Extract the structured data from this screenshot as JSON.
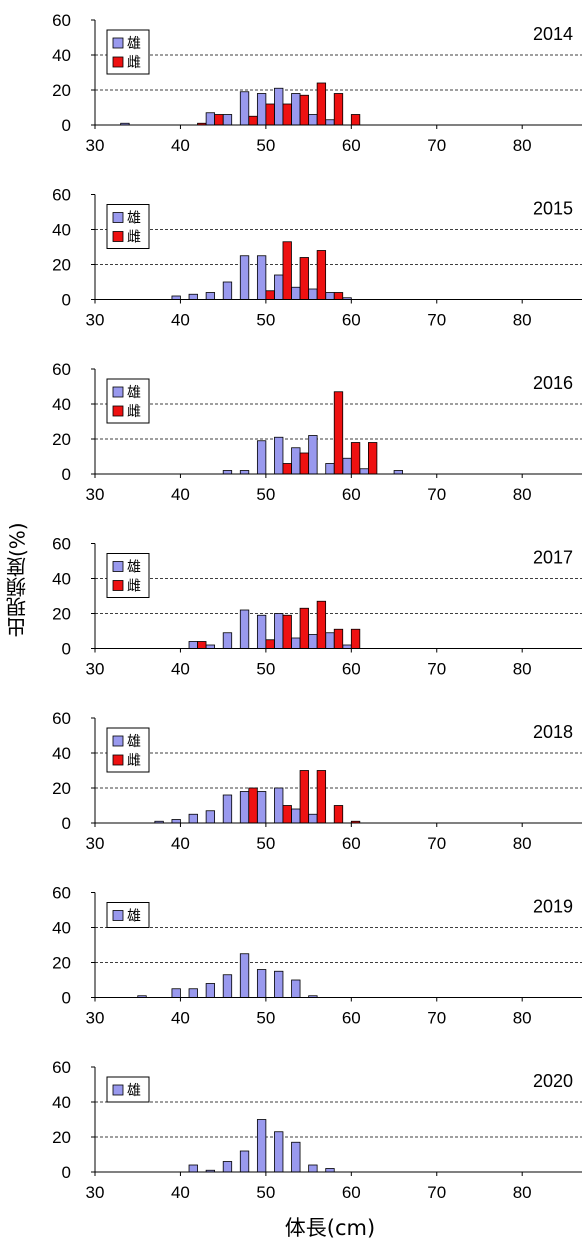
{
  "ylabel": "出現頻度(%)",
  "xlabel": "体長(cm)",
  "colors": {
    "male": "#9999ee",
    "female": "#ee1111",
    "stroke": "#000000"
  },
  "legend_labels": {
    "male": "雄",
    "female": "雌"
  },
  "chart_data": [
    {
      "type": "bar",
      "title": "2014",
      "xlim": [
        30,
        87
      ],
      "ylim": [
        0,
        60
      ],
      "xticks": [
        "30",
        "40",
        "50",
        "60",
        "70",
        "80"
      ],
      "yticks": [
        "0",
        "20",
        "40",
        "60"
      ],
      "grid": "dashed horizontal at 20 and 40",
      "legend": "top-left",
      "series": [
        {
          "name": "雄",
          "x": [
            34,
            44,
            46,
            48,
            50,
            52,
            54,
            56,
            58
          ],
          "values": [
            1,
            7,
            6,
            19,
            18,
            21,
            18,
            6,
            3
          ]
        },
        {
          "name": "雌",
          "x": [
            42,
            44,
            48,
            50,
            52,
            54,
            56,
            58
          ],
          "values": [
            1,
            6,
            5,
            12,
            12,
            17,
            24,
            18
          ]
        },
        {
          "name": "雌",
          "x": [
            60
          ],
          "values": [
            6
          ]
        }
      ]
    },
    {
      "type": "bar",
      "title": "2015",
      "xlim": [
        30,
        87
      ],
      "ylim": [
        0,
        60
      ],
      "xticks": [
        "30",
        "40",
        "50",
        "60",
        "70",
        "80"
      ],
      "yticks": [
        "0",
        "20",
        "40",
        "60"
      ],
      "grid": "dashed horizontal at 20 and 40",
      "legend": "top-left",
      "series": [
        {
          "name": "雄",
          "x": [
            40,
            42,
            44,
            46,
            48,
            50,
            52,
            54,
            56,
            58,
            60
          ],
          "values": [
            2,
            3,
            4,
            10,
            25,
            25,
            14,
            7,
            6,
            4,
            1
          ]
        },
        {
          "name": "雌",
          "x": [
            50,
            52,
            54,
            56,
            58
          ],
          "values": [
            5,
            33,
            24,
            28,
            4
          ]
        }
      ]
    },
    {
      "type": "bar",
      "title": "2016",
      "xlim": [
        30,
        87
      ],
      "ylim": [
        0,
        60
      ],
      "xticks": [
        "30",
        "40",
        "50",
        "60",
        "70",
        "80"
      ],
      "yticks": [
        "0",
        "20",
        "40",
        "60"
      ],
      "grid": "dashed horizontal at 20 and 40",
      "legend": "top-left",
      "series": [
        {
          "name": "雄",
          "x": [
            46,
            48,
            50,
            52,
            54,
            56,
            58,
            60,
            62,
            66
          ],
          "values": [
            2,
            2,
            19,
            21,
            15,
            22,
            6,
            9,
            3,
            2
          ]
        },
        {
          "name": "雌",
          "x": [
            52,
            54,
            58,
            60,
            62
          ],
          "values": [
            6,
            12,
            47,
            18,
            18
          ]
        }
      ]
    },
    {
      "type": "bar",
      "title": "2017",
      "xlim": [
        30,
        87
      ],
      "ylim": [
        0,
        60
      ],
      "xticks": [
        "30",
        "40",
        "50",
        "60",
        "70",
        "80"
      ],
      "yticks": [
        "0",
        "20",
        "40",
        "60"
      ],
      "grid": "dashed horizontal at 20 and 40",
      "legend": "top-left",
      "series": [
        {
          "name": "雄",
          "x": [
            42,
            44,
            46,
            48,
            50,
            52,
            54,
            56,
            58,
            60
          ],
          "values": [
            4,
            2,
            9,
            22,
            19,
            20,
            6,
            8,
            9,
            2
          ]
        },
        {
          "name": "雌",
          "x": [
            42,
            50,
            52,
            54,
            56,
            58,
            60
          ],
          "values": [
            4,
            5,
            19,
            23,
            27,
            11,
            11
          ]
        }
      ]
    },
    {
      "type": "bar",
      "title": "2018",
      "xlim": [
        30,
        87
      ],
      "ylim": [
        0,
        60
      ],
      "xticks": [
        "30",
        "40",
        "50",
        "60",
        "70",
        "80"
      ],
      "yticks": [
        "0",
        "20",
        "40",
        "60"
      ],
      "grid": "dashed horizontal at 20 and 40",
      "legend": "top-left",
      "series": [
        {
          "name": "雄",
          "x": [
            38,
            40,
            42,
            44,
            46,
            48,
            50,
            52,
            54,
            56
          ],
          "values": [
            1,
            2,
            5,
            7,
            16,
            18,
            18,
            20,
            8,
            5
          ]
        },
        {
          "name": "雌",
          "x": [
            48,
            52,
            54,
            56,
            58,
            60
          ],
          "values": [
            20,
            10,
            30,
            30,
            10,
            1
          ]
        }
      ]
    },
    {
      "type": "bar",
      "title": "2019",
      "xlim": [
        30,
        87
      ],
      "ylim": [
        0,
        60
      ],
      "xticks": [
        "30",
        "40",
        "50",
        "60",
        "70",
        "80"
      ],
      "yticks": [
        "0",
        "20",
        "40",
        "60"
      ],
      "grid": "dashed horizontal at 20 and 40",
      "legend": "top-left",
      "series": [
        {
          "name": "雄",
          "x": [
            36,
            40,
            42,
            44,
            46,
            48,
            50,
            52,
            54,
            56
          ],
          "values": [
            1,
            5,
            5,
            8,
            13,
            25,
            16,
            15,
            10,
            1
          ]
        }
      ]
    },
    {
      "type": "bar",
      "title": "2020",
      "xlim": [
        30,
        87
      ],
      "ylim": [
        0,
        60
      ],
      "xticks": [
        "30",
        "40",
        "50",
        "60",
        "70",
        "80"
      ],
      "yticks": [
        "0",
        "20",
        "40",
        "60"
      ],
      "grid": "dashed horizontal at 20 and 40",
      "legend": "top-left",
      "series": [
        {
          "name": "雄",
          "x": [
            42,
            44,
            46,
            48,
            50,
            52,
            54,
            56,
            58
          ],
          "values": [
            4,
            1,
            6,
            12,
            30,
            23,
            17,
            4,
            2
          ]
        }
      ]
    }
  ]
}
